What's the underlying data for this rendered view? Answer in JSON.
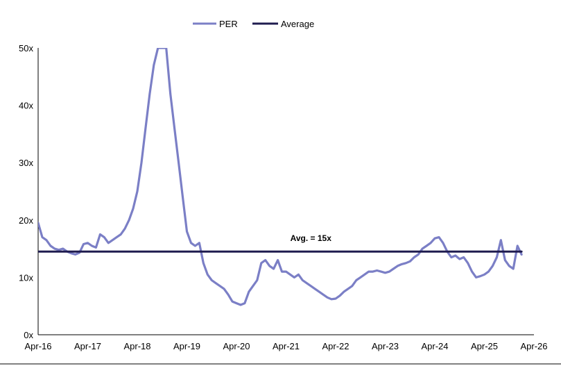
{
  "chart_data": {
    "type": "line",
    "title": "",
    "xlabel": "",
    "ylabel": "",
    "ylim": [
      0,
      50
    ],
    "y_ticks": [
      "0x",
      "10x",
      "20x",
      "30x",
      "40x",
      "50x"
    ],
    "x_ticks": [
      "Apr-16",
      "Apr-17",
      "Apr-18",
      "Apr-19",
      "Apr-20",
      "Apr-21",
      "Apr-22",
      "Apr-23",
      "Apr-24",
      "Apr-25",
      "Apr-26"
    ],
    "grid": false,
    "legend_position": "top-center",
    "series": [
      {
        "name": "PER",
        "color": "#7b7fc6",
        "points": [
          [
            "2016-04",
            19.5
          ],
          [
            "2016-05",
            17.0
          ],
          [
            "2016-06",
            16.5
          ],
          [
            "2016-07",
            15.5
          ],
          [
            "2016-08",
            15.0
          ],
          [
            "2016-09",
            14.8
          ],
          [
            "2016-10",
            15.0
          ],
          [
            "2016-11",
            14.5
          ],
          [
            "2016-12",
            14.2
          ],
          [
            "2017-01",
            14.0
          ],
          [
            "2017-02",
            14.3
          ],
          [
            "2017-03",
            15.8
          ],
          [
            "2017-04",
            16.0
          ],
          [
            "2017-05",
            15.5
          ],
          [
            "2017-06",
            15.2
          ],
          [
            "2017-07",
            17.5
          ],
          [
            "2017-08",
            17.0
          ],
          [
            "2017-09",
            16.0
          ],
          [
            "2017-10",
            16.5
          ],
          [
            "2017-11",
            17.0
          ],
          [
            "2017-12",
            17.5
          ],
          [
            "2018-01",
            18.5
          ],
          [
            "2018-02",
            20.0
          ],
          [
            "2018-03",
            22.0
          ],
          [
            "2018-04",
            25.0
          ],
          [
            "2018-05",
            30.0
          ],
          [
            "2018-06",
            36.0
          ],
          [
            "2018-07",
            42.0
          ],
          [
            "2018-08",
            47.0
          ],
          [
            "2018-09",
            50.0
          ],
          [
            "2018-10",
            50.0
          ],
          [
            "2018-11",
            50.0
          ],
          [
            "2018-12",
            42.0
          ],
          [
            "2019-01",
            36.0
          ],
          [
            "2019-02",
            30.0
          ],
          [
            "2019-03",
            24.0
          ],
          [
            "2019-04",
            18.0
          ],
          [
            "2019-05",
            16.0
          ],
          [
            "2019-06",
            15.5
          ],
          [
            "2019-07",
            16.0
          ],
          [
            "2019-08",
            12.5
          ],
          [
            "2019-09",
            10.5
          ],
          [
            "2019-10",
            9.5
          ],
          [
            "2019-11",
            9.0
          ],
          [
            "2019-12",
            8.5
          ],
          [
            "2020-01",
            8.0
          ],
          [
            "2020-02",
            7.0
          ],
          [
            "2020-03",
            5.8
          ],
          [
            "2020-04",
            5.5
          ],
          [
            "2020-05",
            5.2
          ],
          [
            "2020-06",
            5.5
          ],
          [
            "2020-07",
            7.5
          ],
          [
            "2020-08",
            8.5
          ],
          [
            "2020-09",
            9.5
          ],
          [
            "2020-10",
            12.5
          ],
          [
            "2020-11",
            13.0
          ],
          [
            "2020-12",
            12.0
          ],
          [
            "2021-01",
            11.5
          ],
          [
            "2021-02",
            13.0
          ],
          [
            "2021-03",
            11.0
          ],
          [
            "2021-04",
            11.0
          ],
          [
            "2021-05",
            10.5
          ],
          [
            "2021-06",
            10.0
          ],
          [
            "2021-07",
            10.5
          ],
          [
            "2021-08",
            9.5
          ],
          [
            "2021-09",
            9.0
          ],
          [
            "2021-10",
            8.5
          ],
          [
            "2021-11",
            8.0
          ],
          [
            "2021-12",
            7.5
          ],
          [
            "2022-01",
            7.0
          ],
          [
            "2022-02",
            6.5
          ],
          [
            "2022-03",
            6.2
          ],
          [
            "2022-04",
            6.3
          ],
          [
            "2022-05",
            6.8
          ],
          [
            "2022-06",
            7.5
          ],
          [
            "2022-07",
            8.0
          ],
          [
            "2022-08",
            8.5
          ],
          [
            "2022-09",
            9.5
          ],
          [
            "2022-10",
            10.0
          ],
          [
            "2022-11",
            10.5
          ],
          [
            "2022-12",
            11.0
          ],
          [
            "2023-01",
            11.0
          ],
          [
            "2023-02",
            11.2
          ],
          [
            "2023-03",
            11.0
          ],
          [
            "2023-04",
            10.8
          ],
          [
            "2023-05",
            11.0
          ],
          [
            "2023-06",
            11.5
          ],
          [
            "2023-07",
            12.0
          ],
          [
            "2023-08",
            12.3
          ],
          [
            "2023-09",
            12.5
          ],
          [
            "2023-10",
            12.8
          ],
          [
            "2023-11",
            13.5
          ],
          [
            "2023-12",
            14.0
          ],
          [
            "2024-01",
            15.0
          ],
          [
            "2024-02",
            15.5
          ],
          [
            "2024-03",
            16.0
          ],
          [
            "2024-04",
            16.8
          ],
          [
            "2024-05",
            17.0
          ],
          [
            "2024-06",
            16.0
          ],
          [
            "2024-07",
            14.5
          ],
          [
            "2024-08",
            13.5
          ],
          [
            "2024-09",
            13.8
          ],
          [
            "2024-10",
            13.2
          ],
          [
            "2024-11",
            13.5
          ],
          [
            "2024-12",
            12.5
          ],
          [
            "2025-01",
            11.0
          ],
          [
            "2025-02",
            10.0
          ],
          [
            "2025-03",
            10.2
          ],
          [
            "2025-04",
            10.5
          ],
          [
            "2025-05",
            11.0
          ],
          [
            "2025-06",
            12.0
          ],
          [
            "2025-07",
            13.5
          ],
          [
            "2025-08",
            16.5
          ],
          [
            "2025-09",
            13.0
          ],
          [
            "2025-10",
            12.0
          ],
          [
            "2025-11",
            11.5
          ],
          [
            "2025-12",
            15.5
          ],
          [
            "2026-01",
            14.0
          ]
        ]
      },
      {
        "name": "Average",
        "color": "#1f1c4f",
        "points": [
          [
            "2016-04",
            14.5
          ],
          [
            "2026-01",
            14.5
          ]
        ]
      }
    ],
    "annotations": [
      {
        "text": "Avg. = 15x",
        "x": "2021-10",
        "y": 14.5
      }
    ]
  }
}
